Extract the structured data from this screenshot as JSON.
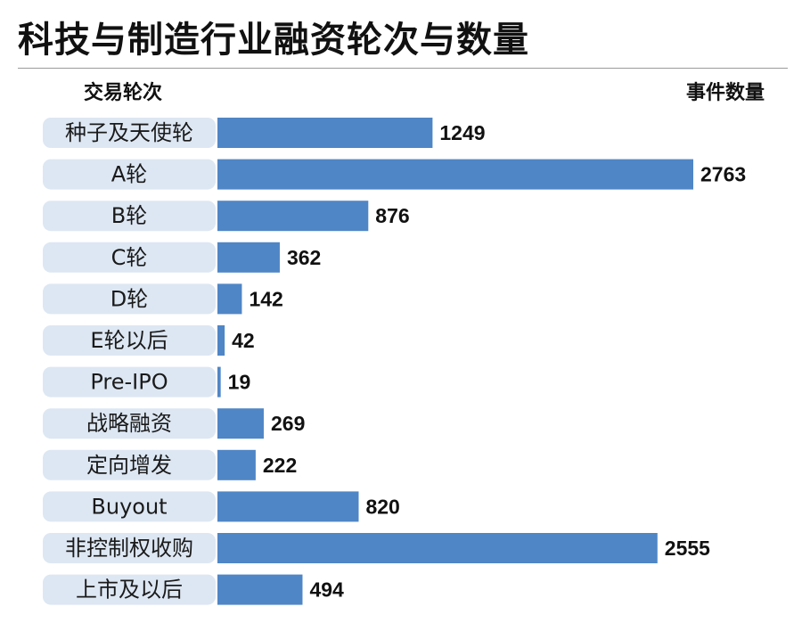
{
  "page": {
    "title": "科技与制造行业融资轮次与数量",
    "left_header": "交易轮次",
    "right_header": "事件数量"
  },
  "colors": {
    "bar": "#4f86c6",
    "label_bg": "#dde7f3",
    "rule": "#9a9a9a"
  },
  "chart_data": {
    "type": "bar",
    "orientation": "horizontal",
    "title": "科技与制造行业融资轮次与数量",
    "xlabel": "事件数量",
    "ylabel": "交易轮次",
    "categories": [
      "种子及天使轮",
      "A轮",
      "B轮",
      "C轮",
      "D轮",
      "E轮以后",
      "Pre-IPO",
      "战略融资",
      "定向增发",
      "Buyout",
      "非控制权收购",
      "上市及以后"
    ],
    "values": [
      1249,
      2763,
      876,
      362,
      142,
      42,
      19,
      269,
      222,
      820,
      2555,
      494
    ],
    "data_labels": [
      "1249",
      "2763",
      "876",
      "362",
      "142",
      "42",
      "19",
      "269",
      "222",
      "820",
      "2555",
      "494"
    ],
    "xlim": [
      0,
      2763
    ],
    "grid": false,
    "legend": "none"
  }
}
